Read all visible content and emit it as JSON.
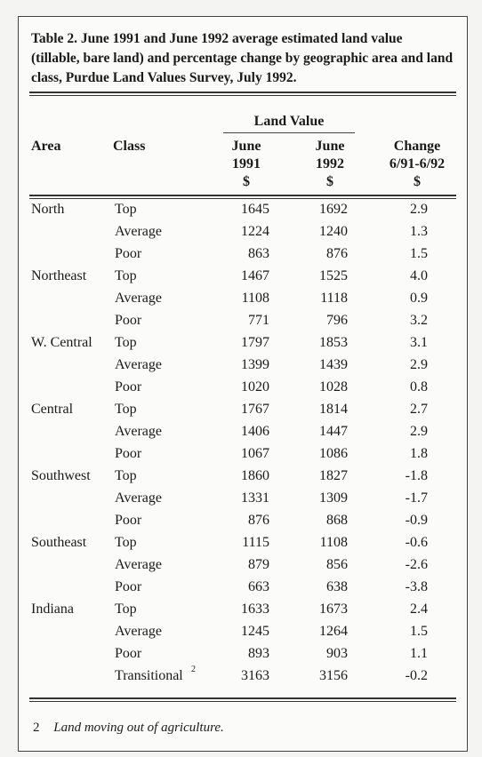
{
  "caption": "Table 2. June 1991 and June 1992 average estimated land value (tillable, bare land) and percentage change by geographic area and land class, Purdue Land Values Survey, July 1992.",
  "headers": {
    "area": "Area",
    "class": "Class",
    "land_value": "Land Value",
    "june1991": [
      "June",
      "1991",
      "$"
    ],
    "june1992": [
      "June",
      "1992",
      "$"
    ],
    "change": [
      "Change",
      "6/91-6/92",
      "$"
    ]
  },
  "rows": [
    {
      "area": "North",
      "class": "Top",
      "v1991": "1645",
      "v1992": "1692",
      "change": "2.9"
    },
    {
      "area": "",
      "class": "Average",
      "v1991": "1224",
      "v1992": "1240",
      "change": "1.3"
    },
    {
      "area": "",
      "class": "Poor",
      "v1991": "863",
      "v1992": "876",
      "change": "1.5"
    },
    {
      "area": "Northeast",
      "class": "Top",
      "v1991": "1467",
      "v1992": "1525",
      "change": "4.0"
    },
    {
      "area": "",
      "class": "Average",
      "v1991": "1108",
      "v1992": "1118",
      "change": "0.9"
    },
    {
      "area": "",
      "class": "Poor",
      "v1991": "771",
      "v1992": "796",
      "change": "3.2"
    },
    {
      "area": "W. Central",
      "class": "Top",
      "v1991": "1797",
      "v1992": "1853",
      "change": "3.1"
    },
    {
      "area": "",
      "class": "Average",
      "v1991": "1399",
      "v1992": "1439",
      "change": "2.9"
    },
    {
      "area": "",
      "class": "Poor",
      "v1991": "1020",
      "v1992": "1028",
      "change": "0.8"
    },
    {
      "area": "Central",
      "class": "Top",
      "v1991": "1767",
      "v1992": "1814",
      "change": "2.7"
    },
    {
      "area": "",
      "class": "Average",
      "v1991": "1406",
      "v1992": "1447",
      "change": "2.9"
    },
    {
      "area": "",
      "class": "Poor",
      "v1991": "1067",
      "v1992": "1086",
      "change": "1.8"
    },
    {
      "area": "Southwest",
      "class": "Top",
      "v1991": "1860",
      "v1992": "1827",
      "change": "-1.8"
    },
    {
      "area": "",
      "class": "Average",
      "v1991": "1331",
      "v1992": "1309",
      "change": "-1.7"
    },
    {
      "area": "",
      "class": "Poor",
      "v1991": "876",
      "v1992": "868",
      "change": "-0.9"
    },
    {
      "area": "Southeast",
      "class": "Top",
      "v1991": "1115",
      "v1992": "1108",
      "change": "-0.6"
    },
    {
      "area": "",
      "class": "Average",
      "v1991": "879",
      "v1992": "856",
      "change": "-2.6"
    },
    {
      "area": "",
      "class": "Poor",
      "v1991": "663",
      "v1992": "638",
      "change": "-3.8"
    },
    {
      "area": "Indiana",
      "class": "Top",
      "v1991": "1633",
      "v1992": "1673",
      "change": "2.4"
    },
    {
      "area": "",
      "class": "Average",
      "v1991": "1245",
      "v1992": "1264",
      "change": "1.5"
    },
    {
      "area": "",
      "class": "Poor",
      "v1991": "893",
      "v1992": "903",
      "change": "1.1"
    },
    {
      "area": "",
      "class": "Transitional",
      "class_sup": "2",
      "v1991": "3163",
      "v1992": "3156",
      "change": "-0.2"
    }
  ],
  "footnote": {
    "number": "2",
    "text": "Land moving out of agriculture."
  }
}
